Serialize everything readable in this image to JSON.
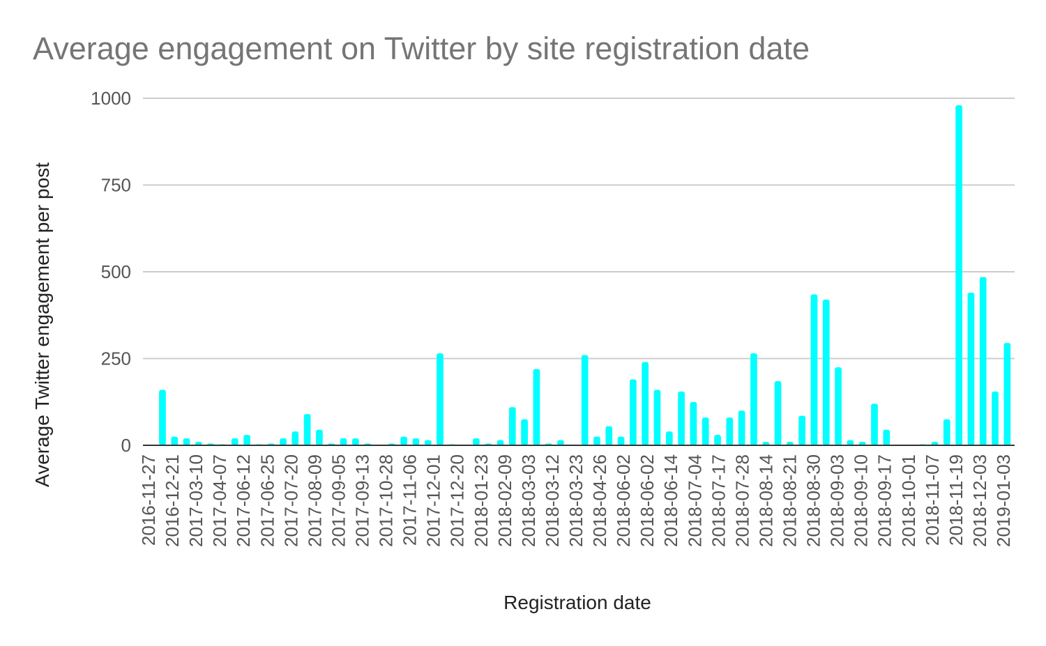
{
  "chart_data": {
    "type": "bar",
    "title": "Average engagement on Twitter by site registration date",
    "xlabel": "Registration date",
    "ylabel": "Average Twitter engagement per post",
    "ylim": [
      0,
      1000
    ],
    "yticks": [
      0,
      250,
      500,
      750,
      1000
    ],
    "grid": true,
    "bar_color": "#00FFFF",
    "x_tick_labels": [
      "2016-11-27",
      "2016-12-21",
      "2017-03-10",
      "2017-04-07",
      "2017-06-12",
      "2017-06-25",
      "2017-07-20",
      "2017-08-09",
      "2017-09-05",
      "2017-09-13",
      "2017-10-28",
      "2017-11-06",
      "2017-12-01",
      "2017-12-20",
      "2018-01-23",
      "2018-02-09",
      "2018-03-03",
      "2018-03-12",
      "2018-03-23",
      "2018-04-26",
      "2018-06-02",
      "2018-06-02",
      "2018-06-14",
      "2018-07-04",
      "2018-07-17",
      "2018-07-28",
      "2018-08-14",
      "2018-08-21",
      "2018-08-30",
      "2018-09-03",
      "2018-09-10",
      "2018-09-17",
      "2018-10-01",
      "2018-11-07",
      "2018-11-19",
      "2018-12-03",
      "2019-01-03"
    ],
    "values": [
      0,
      160,
      25,
      20,
      10,
      5,
      3,
      20,
      30,
      3,
      5,
      20,
      40,
      90,
      45,
      5,
      20,
      20,
      5,
      0,
      5,
      25,
      20,
      15,
      265,
      3,
      0,
      20,
      5,
      15,
      110,
      75,
      220,
      5,
      15,
      0,
      260,
      25,
      55,
      25,
      190,
      240,
      160,
      40,
      155,
      125,
      80,
      30,
      80,
      100,
      265,
      10,
      185,
      10,
      85,
      435,
      420,
      225,
      15,
      10,
      120,
      45,
      0,
      0,
      3,
      10,
      75,
      980,
      440,
      485,
      155,
      295
    ]
  }
}
